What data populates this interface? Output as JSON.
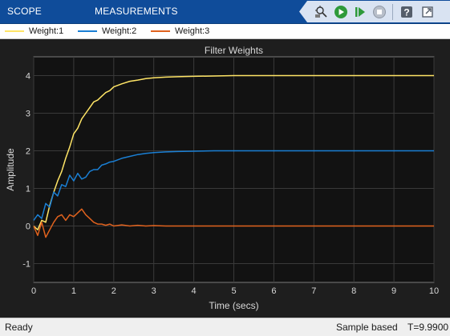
{
  "toolstrip": {
    "tabs": [
      {
        "label": "SCOPE"
      },
      {
        "label": "MEASUREMENTS"
      }
    ],
    "buttons": [
      {
        "name": "highlight-block-icon"
      },
      {
        "name": "run-icon"
      },
      {
        "name": "step-forward-icon"
      },
      {
        "name": "stop-icon"
      },
      {
        "name": "help-icon"
      },
      {
        "name": "undock-icon"
      }
    ]
  },
  "legend": [
    {
      "label": "Weight:1",
      "color": "#ffe566"
    },
    {
      "label": "Weight:2",
      "color": "#1a7fd4"
    },
    {
      "label": "Weight:3",
      "color": "#e0621e"
    }
  ],
  "chart_data": {
    "type": "line",
    "title": "Filter Weights",
    "xlabel": "Time (secs)",
    "ylabel": "Amplitude",
    "xlim": [
      0,
      10
    ],
    "ylim": [
      -1.5,
      4.5
    ],
    "xticks": [
      0,
      1,
      2,
      3,
      4,
      5,
      6,
      7,
      8,
      9,
      10
    ],
    "yticks": [
      -1,
      0,
      1,
      2,
      3,
      4
    ],
    "grid": true,
    "legend_position": "top",
    "series": [
      {
        "name": "Weight:1",
        "color": "#ffe566",
        "x": [
          0,
          0.1,
          0.2,
          0.3,
          0.4,
          0.5,
          0.6,
          0.7,
          0.8,
          0.9,
          1.0,
          1.1,
          1.2,
          1.3,
          1.4,
          1.5,
          1.6,
          1.7,
          1.8,
          1.9,
          2.0,
          2.2,
          2.4,
          2.6,
          2.8,
          3.0,
          3.3,
          3.6,
          4.0,
          4.5,
          5.0,
          6.0,
          7.0,
          8.0,
          9.0,
          10.0
        ],
        "y": [
          0,
          -0.1,
          0.15,
          0.1,
          0.55,
          0.9,
          1.2,
          1.45,
          1.8,
          2.1,
          2.45,
          2.6,
          2.85,
          3.0,
          3.15,
          3.3,
          3.35,
          3.45,
          3.55,
          3.6,
          3.7,
          3.78,
          3.85,
          3.88,
          3.92,
          3.94,
          3.96,
          3.97,
          3.98,
          3.99,
          4.0,
          4.0,
          4.0,
          4.0,
          4.0,
          4.0
        ]
      },
      {
        "name": "Weight:2",
        "color": "#1a7fd4",
        "x": [
          0,
          0.1,
          0.2,
          0.3,
          0.4,
          0.5,
          0.6,
          0.7,
          0.8,
          0.9,
          1.0,
          1.1,
          1.2,
          1.3,
          1.4,
          1.5,
          1.6,
          1.7,
          1.8,
          1.9,
          2.0,
          2.2,
          2.4,
          2.6,
          2.8,
          3.0,
          3.3,
          3.6,
          4.0,
          4.5,
          5.0,
          6.0,
          7.0,
          8.0,
          9.0,
          10.0
        ],
        "y": [
          0.15,
          0.3,
          0.2,
          0.6,
          0.5,
          0.9,
          0.8,
          1.1,
          1.05,
          1.35,
          1.2,
          1.4,
          1.25,
          1.3,
          1.45,
          1.5,
          1.5,
          1.62,
          1.65,
          1.7,
          1.72,
          1.8,
          1.85,
          1.9,
          1.93,
          1.95,
          1.97,
          1.98,
          1.99,
          2.0,
          2.0,
          2.0,
          2.0,
          2.0,
          2.0,
          2.0
        ]
      },
      {
        "name": "Weight:3",
        "color": "#e0621e",
        "x": [
          0,
          0.1,
          0.2,
          0.3,
          0.4,
          0.5,
          0.6,
          0.7,
          0.8,
          0.9,
          1.0,
          1.1,
          1.2,
          1.3,
          1.4,
          1.5,
          1.6,
          1.7,
          1.8,
          1.9,
          2.0,
          2.2,
          2.4,
          2.6,
          2.8,
          3.0,
          3.3,
          3.6,
          4.0,
          4.5,
          5.0,
          6.0,
          7.0,
          8.0,
          9.0,
          10.0
        ],
        "y": [
          0,
          -0.25,
          0.1,
          -0.3,
          -0.1,
          0.1,
          0.25,
          0.3,
          0.15,
          0.3,
          0.25,
          0.35,
          0.45,
          0.3,
          0.2,
          0.1,
          0.05,
          0.05,
          0.02,
          0.05,
          0.0,
          0.03,
          0.0,
          0.02,
          0.0,
          0.01,
          0.0,
          0.0,
          0.0,
          0.0,
          0.0,
          0.0,
          0.0,
          0.0,
          0.0,
          0.0
        ]
      }
    ]
  },
  "status": {
    "state": "Ready",
    "mode": "Sample based",
    "time": "T=9.9900"
  }
}
